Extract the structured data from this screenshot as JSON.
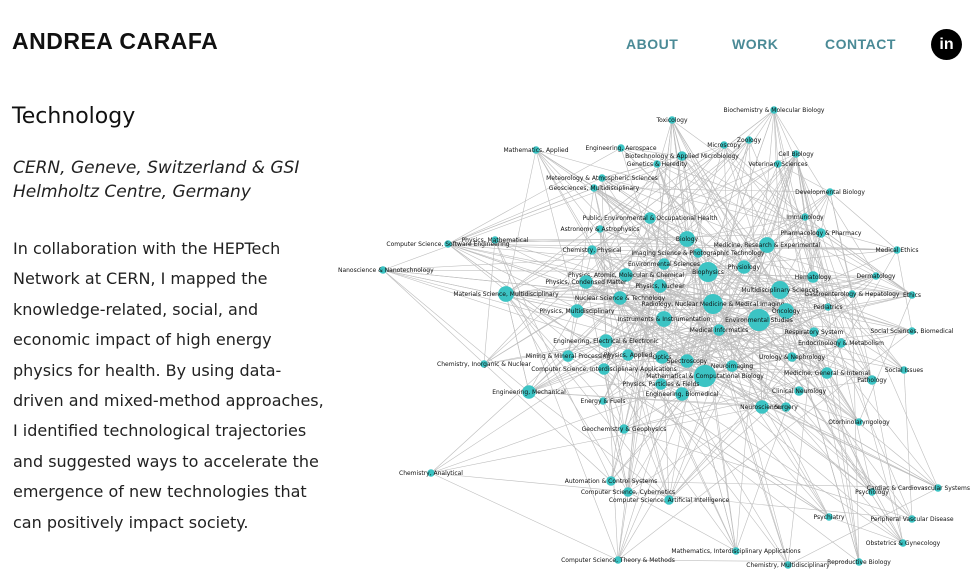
{
  "header": {
    "brand": "ANDREA CARAFA",
    "nav": [
      {
        "label": "ABOUT"
      },
      {
        "label": "WORK"
      },
      {
        "label": "CONTACT"
      }
    ],
    "linkedin_label": "in"
  },
  "content": {
    "title": "Technology",
    "location": "CERN, Geneve, Switzerland & GSI Helmholtz Centre, Germany",
    "description": "In collaboration with the HEPTech Network at CERN, I mapped the knowledge-related, social, and economic impact of high energy physics for health. By using data-driven and mixed-method approaches, I identified technological trajectories and suggested ways to accelerate the emergence of new technologies that can positively impact society."
  },
  "network": {
    "node_color": "#3cc4c4",
    "edge_color": "#bdbdbd",
    "nodes": [
      {
        "label": "Biochemistry & Molecular Biology",
        "w": 1
      },
      {
        "label": "Toxicology",
        "w": 1
      },
      {
        "label": "Mathematics, Applied",
        "w": 1
      },
      {
        "label": "Engineering, Aerospace",
        "w": 1
      },
      {
        "label": "Microscopy",
        "w": 1
      },
      {
        "label": "Zoology",
        "w": 1
      },
      {
        "label": "Biotechnology & Applied Microbiology",
        "w": 1.5
      },
      {
        "label": "Cell Biology",
        "w": 1
      },
      {
        "label": "Genetics & Heredity",
        "w": 1
      },
      {
        "label": "Veterinary Sciences",
        "w": 1
      },
      {
        "label": "Meteorology & Atmospheric Sciences",
        "w": 1
      },
      {
        "label": "Geosciences, Multidisciplinary",
        "w": 1
      },
      {
        "label": "Developmental Biology",
        "w": 1
      },
      {
        "label": "Immunology",
        "w": 1
      },
      {
        "label": "Public, Environmental & Occupational Health",
        "w": 2
      },
      {
        "label": "Astronomy & Astrophysics",
        "w": 1
      },
      {
        "label": "Pharmacology & Pharmacy",
        "w": 1.5
      },
      {
        "label": "Physics, Mathematical",
        "w": 1
      },
      {
        "label": "Biology",
        "w": 3
      },
      {
        "label": "Computer Science, Software Engineering",
        "w": 1
      },
      {
        "label": "Chemistry, Physical",
        "w": 1.5
      },
      {
        "label": "Medicine, Research & Experimental",
        "w": 3
      },
      {
        "label": "Medical Ethics",
        "w": 1
      },
      {
        "label": "Imaging Science & Photographic Technology",
        "w": 1.5
      },
      {
        "label": "Physiology",
        "w": 2.5
      },
      {
        "label": "Nanoscience & Nanotechnology",
        "w": 1
      },
      {
        "label": "Environmental Sciences",
        "w": 2
      },
      {
        "label": "Hematology",
        "w": 2
      },
      {
        "label": "Dermatology",
        "w": 1
      },
      {
        "label": "Physics, Atomic, Molecular & Chemical",
        "w": 2.5
      },
      {
        "label": "Biophysics",
        "w": 4
      },
      {
        "label": "Physics, Condensed Matter",
        "w": 2.5
      },
      {
        "label": "Physics, Nuclear",
        "w": 2.5
      },
      {
        "label": "Multidisciplinary Sciences",
        "w": 3.5
      },
      {
        "label": "Materials Science, Multidisciplinary",
        "w": 3
      },
      {
        "label": "Gastroenterology & Hepatology",
        "w": 1
      },
      {
        "label": "Ethics",
        "w": 1
      },
      {
        "label": "Nuclear Science & Technology",
        "w": 2.5
      },
      {
        "label": "Radiology, Nuclear Medicine & Medical Imaging",
        "w": 4
      },
      {
        "label": "Pediatrics",
        "w": 1
      },
      {
        "label": "Physics, Multidisciplinary",
        "w": 2.5
      },
      {
        "label": "Oncology",
        "w": 3
      },
      {
        "label": "Instruments & Instrumentation",
        "w": 3
      },
      {
        "label": "Environmental Studies",
        "w": 4.5
      },
      {
        "label": "Social Sciences, Biomedical",
        "w": 1
      },
      {
        "label": "Medical Informatics",
        "w": 2
      },
      {
        "label": "Respiratory System",
        "w": 1.5
      },
      {
        "label": "Engineering, Electrical & Electronic",
        "w": 2.5
      },
      {
        "label": "Endocrinology & Metabolism",
        "w": 1.5
      },
      {
        "label": "Mining & Mineral Processing",
        "w": 2
      },
      {
        "label": "Physics, Applied",
        "w": 2
      },
      {
        "label": "Optics",
        "w": 2.5
      },
      {
        "label": "Urology & Nephrology",
        "w": 1.5
      },
      {
        "label": "Chemistry, Inorganic & Nuclear",
        "w": 1
      },
      {
        "label": "Spectroscopy",
        "w": 2.5
      },
      {
        "label": "Neuroimaging",
        "w": 2
      },
      {
        "label": "Computer Science, Interdisciplinary Applications",
        "w": 2
      },
      {
        "label": "Mathematical & Computational Biology",
        "w": 4.5
      },
      {
        "label": "Medicine, General & Internal",
        "w": 2
      },
      {
        "label": "Social Issues",
        "w": 1
      },
      {
        "label": "Physics, Particles & Fields",
        "w": 2
      },
      {
        "label": "Pathology",
        "w": 1.5
      },
      {
        "label": "Engineering, Mechanical",
        "w": 2.5
      },
      {
        "label": "Clinical Neurology",
        "w": 1.5
      },
      {
        "label": "Engineering, Biomedical",
        "w": 2.5
      },
      {
        "label": "Energy & Fuels",
        "w": 1
      },
      {
        "label": "Neurosciences",
        "w": 2.5
      },
      {
        "label": "Surgery",
        "w": 1.5
      },
      {
        "label": "Otorhinolaryngology",
        "w": 1
      },
      {
        "label": "Geochemistry & Geophysics",
        "w": 1.5
      },
      {
        "label": "Chemistry, Analytical",
        "w": 1
      },
      {
        "label": "Automation & Control Systems",
        "w": 1.5
      },
      {
        "label": "Computer Science, Cybernetics",
        "w": 1.5
      },
      {
        "label": "Computer Science, Artificial Intelligence",
        "w": 1.5
      },
      {
        "label": "Psychology",
        "w": 1
      },
      {
        "label": "Cardiac & Cardiovascular Systems",
        "w": 1
      },
      {
        "label": "Psychiatry",
        "w": 1
      },
      {
        "label": "Peripheral Vascular Disease",
        "w": 1
      },
      {
        "label": "Obstetrics & Gynecology",
        "w": 1
      },
      {
        "label": "Mathematics, Interdisciplinary Applications",
        "w": 1
      },
      {
        "label": "Computer Science, Theory & Methods",
        "w": 1
      },
      {
        "label": "Chemistry, Multidisciplinary",
        "w": 1
      },
      {
        "label": "Reproductive Biology",
        "w": 1
      }
    ]
  }
}
